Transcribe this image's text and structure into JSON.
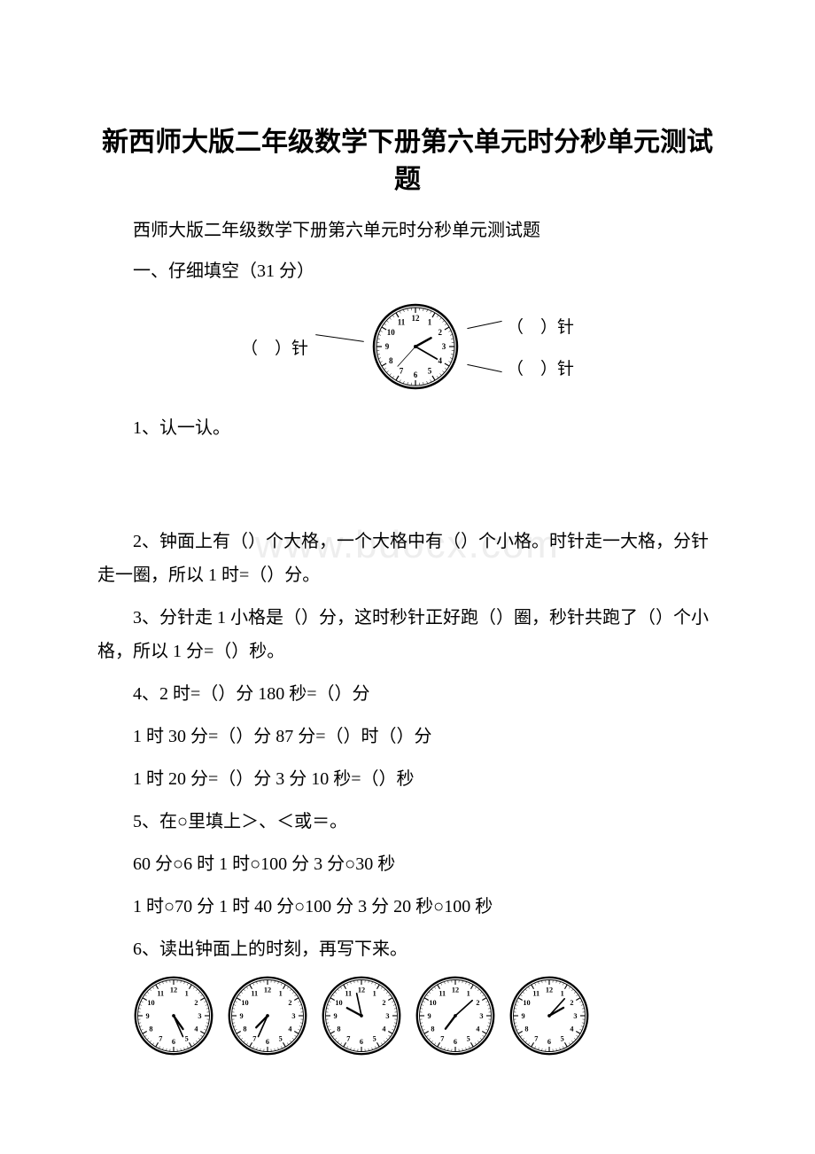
{
  "title": "新西师大版二年级数学下册第六单元时分秒单元测试题",
  "subtitle": "西师大版二年级数学下册第六单元时分秒单元测试题",
  "section1": "一、仔细填空（31 分）",
  "clockLabels": {
    "left": "（　）针",
    "right1": "（　）针",
    "right2": "（　）针"
  },
  "q1": "1、认一认。",
  "q2": "2、钟面上有（）个大格，一个大格中有（）个小格。时针走一大格，分针走一圈，所以 1 时=（）分。",
  "q3": "3、分针走 1 小格是（）分，这时秒针正好跑（）圈，秒针共跑了（）个小格，所以 1 分=（）秒。",
  "q4a": "4、2 时=（）分 180 秒=（）分",
  "q4b": "1 时 30 分=（）分 87 分=（）时（）分",
  "q4c": "1 时 20 分=（）分 3 分 10 秒=（）秒",
  "q5a": "5、在○里填上＞、＜或＝。",
  "q5b": "60 分○6 时 1 时○100 分 3 分○30 秒",
  "q5c": "1 时○70 分 1 时 40 分○100 分 3 分 20 秒○100 秒",
  "q6": "6、读出钟面上的时刻，再写下来。",
  "watermark": "www.bdocx.com",
  "mainClock": {
    "hour": 1.7,
    "minute": 20,
    "second": 37
  },
  "clocks": [
    {
      "hour": 4.4,
      "minute": 26
    },
    {
      "hour": 6.9,
      "minute": 34
    },
    {
      "hour": 8.98,
      "minute": 58
    },
    {
      "hour": 7.1,
      "minute": 8
    },
    {
      "hour": 1.9,
      "minute": 7
    }
  ],
  "colors": {
    "text": "#000000",
    "bg": "#ffffff",
    "watermark": "#eeeeee"
  }
}
